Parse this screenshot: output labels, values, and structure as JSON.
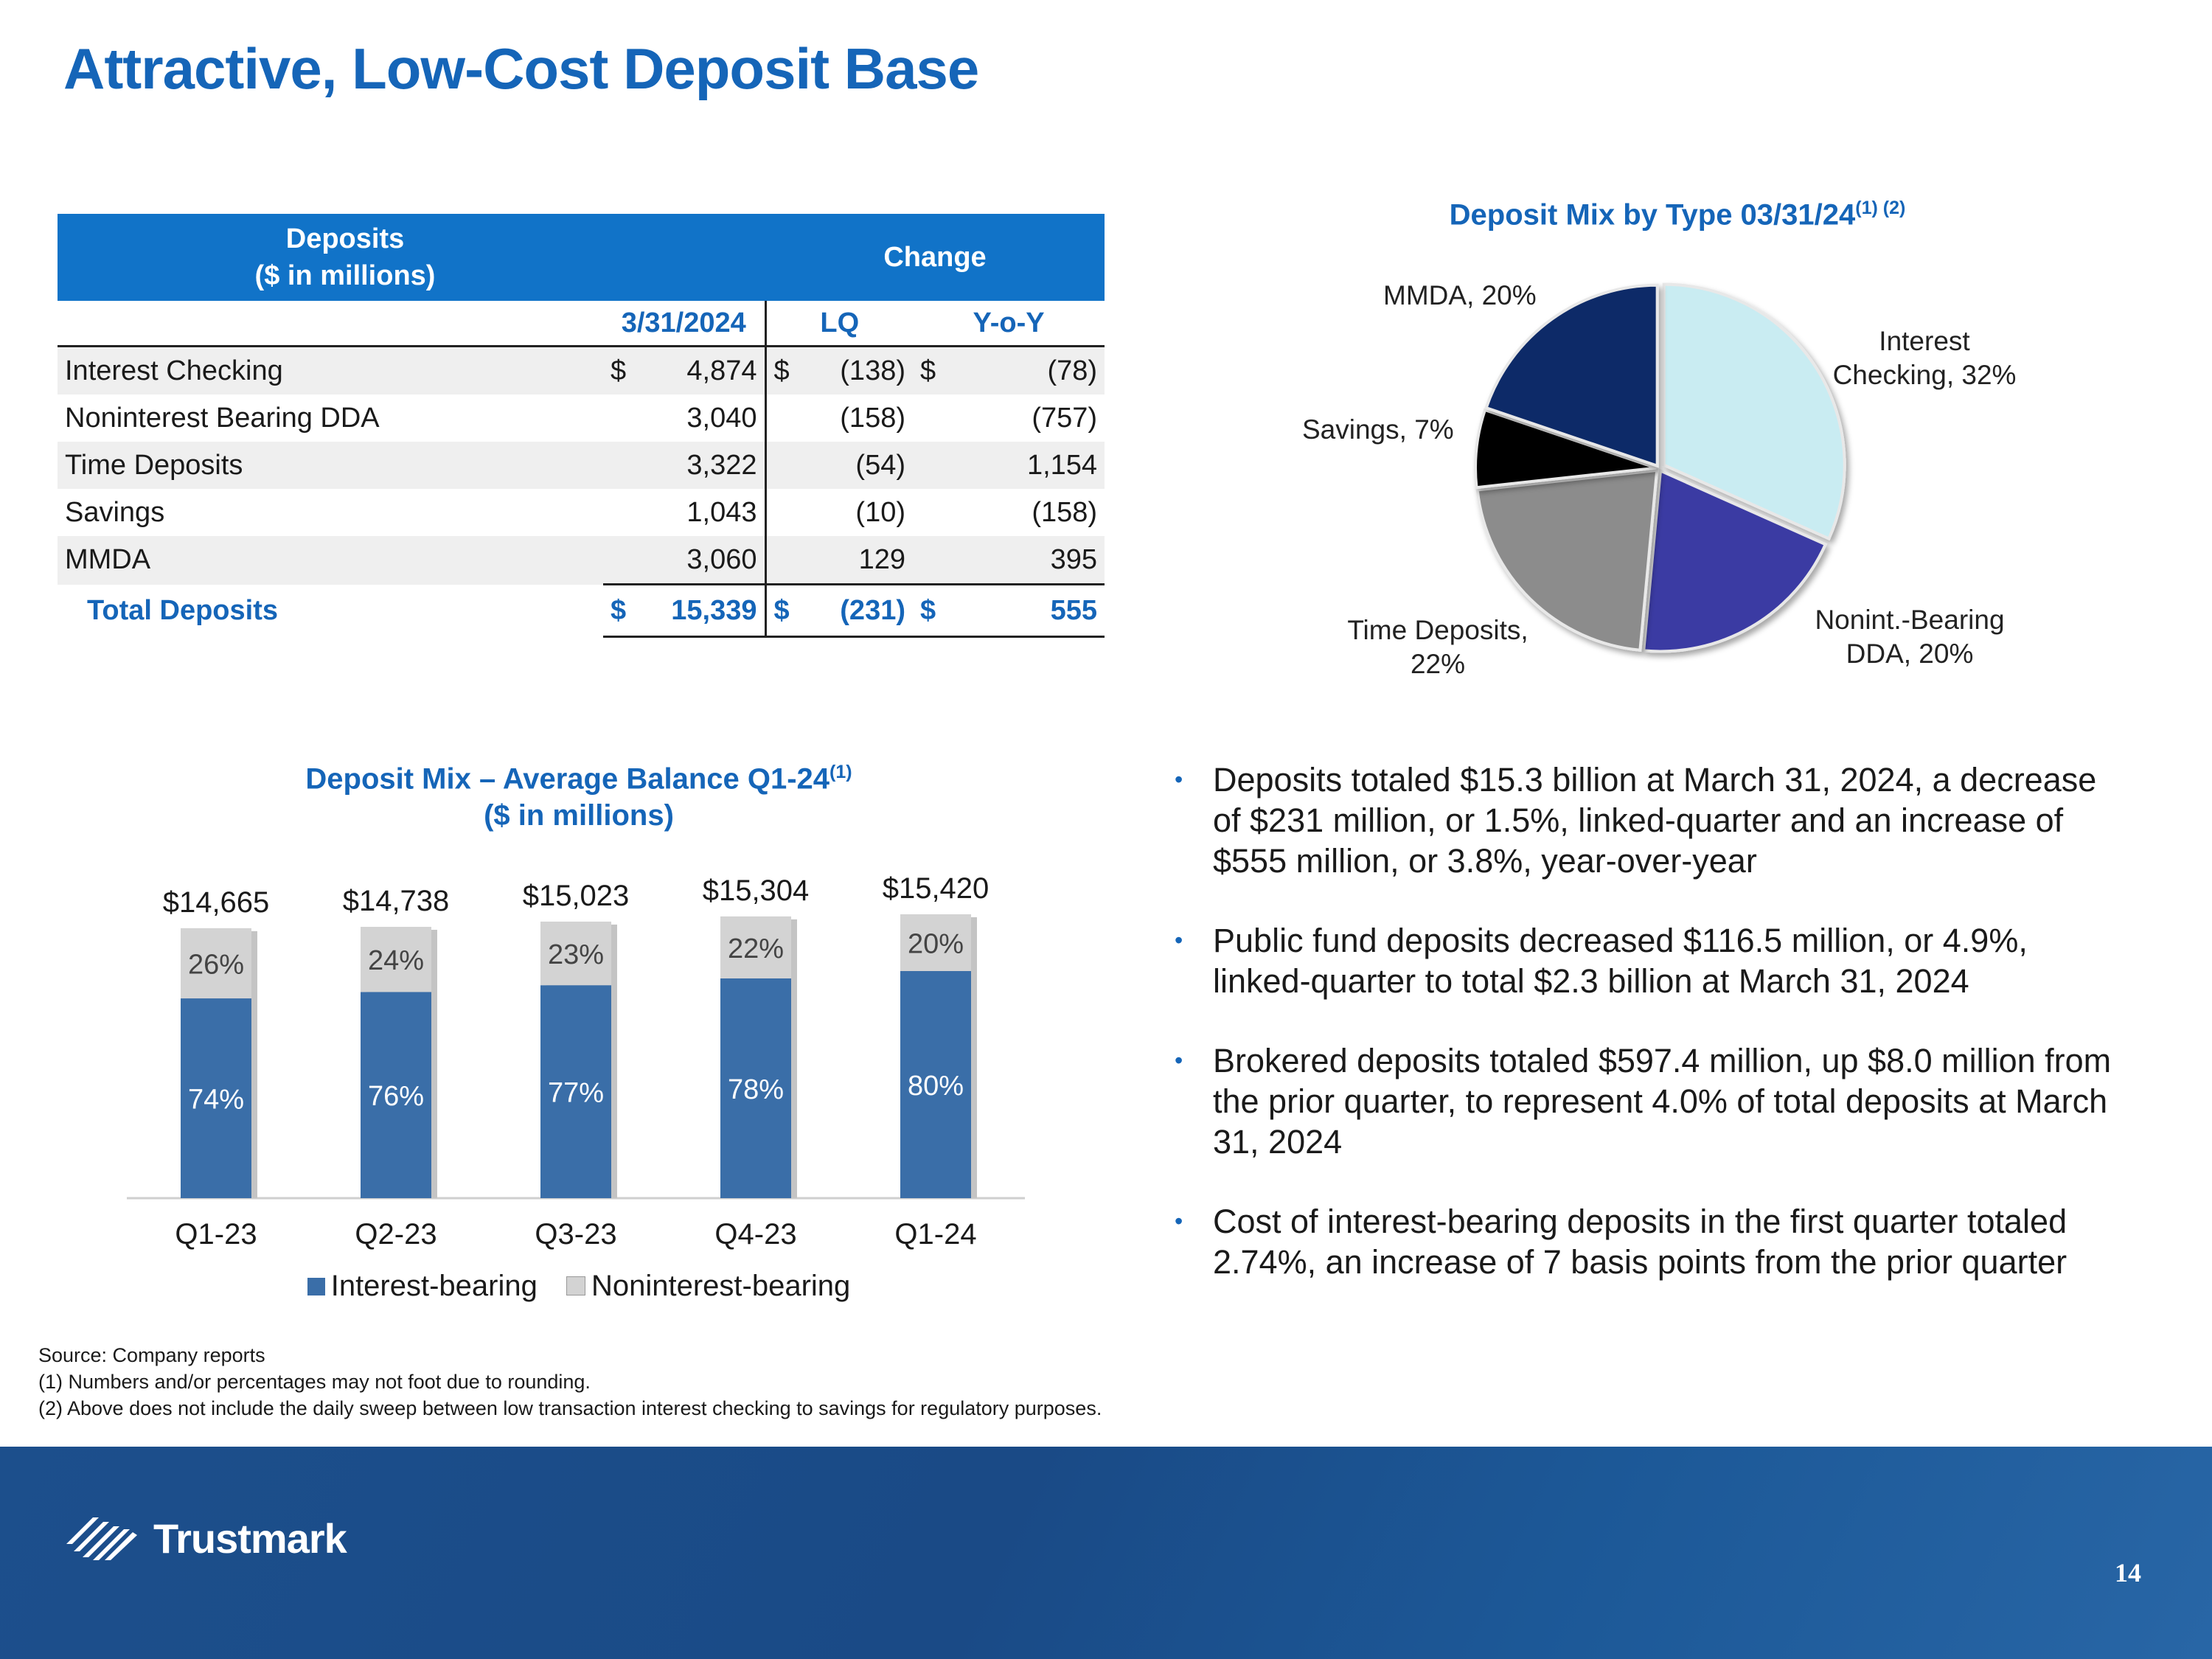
{
  "title": "Attractive, Low-Cost Deposit Base",
  "table": {
    "header_line1": "Deposits",
    "header_line2": "($ in millions)",
    "change_header": "Change",
    "col_date": "3/31/2024",
    "col_lq": "LQ",
    "col_yoy": "Y-o-Y",
    "rows": [
      {
        "label": "Interest Checking",
        "cur1": "$",
        "value": "4,874",
        "cur2": "$",
        "lq": "(138)",
        "cur3": "$",
        "yoy": "(78)"
      },
      {
        "label": "Noninterest Bearing DDA",
        "cur1": "",
        "value": "3,040",
        "cur2": "",
        "lq": "(158)",
        "cur3": "",
        "yoy": "(757)"
      },
      {
        "label": "Time Deposits",
        "cur1": "",
        "value": "3,322",
        "cur2": "",
        "lq": "(54)",
        "cur3": "",
        "yoy": "1,154"
      },
      {
        "label": "Savings",
        "cur1": "",
        "value": "1,043",
        "cur2": "",
        "lq": "(10)",
        "cur3": "",
        "yoy": "(158)"
      },
      {
        "label": "MMDA",
        "cur1": "",
        "value": "3,060",
        "cur2": "",
        "lq": "129",
        "cur3": "",
        "yoy": "395"
      }
    ],
    "total": {
      "label": "Total Deposits",
      "cur1": "$",
      "value": "15,339",
      "cur2": "$",
      "lq": "(231)",
      "cur3": "$",
      "yoy": "555"
    }
  },
  "pie": {
    "title": "Deposit Mix by Type 03/31/24",
    "title_sup": "(1) (2)"
  },
  "bar": {
    "title_line1": "Deposit Mix – Average Balance Q1-24",
    "title_sup": "(1)",
    "title_line2": "($ in millions)"
  },
  "chart_data": [
    {
      "type": "pie",
      "title": "Deposit Mix by Type 03/31/24",
      "slices": [
        {
          "label": "Interest Checking, 32%",
          "value": 32,
          "color": "#c9ecf2"
        },
        {
          "label": "Nonint.-Bearing DDA, 20%",
          "value": 20,
          "color": "#3a3aa3"
        },
        {
          "label": "Time Deposits, 22%",
          "value": 22,
          "color": "#8c8c8c"
        },
        {
          "label": "Savings, 7%",
          "value": 7,
          "color": "#050505"
        },
        {
          "label": "MMDA, 20%",
          "value": 20,
          "color": "#0f2a68"
        }
      ]
    },
    {
      "type": "bar",
      "title": "Deposit Mix – Average Balance Q1-24 ($ in millions)",
      "categories": [
        "Q1-23",
        "Q2-23",
        "Q3-23",
        "Q4-23",
        "Q1-24"
      ],
      "totals": [
        14665,
        14738,
        15023,
        15304,
        15420
      ],
      "total_labels": [
        "$14,665",
        "$14,738",
        "$15,023",
        "$15,304",
        "$15,420"
      ],
      "series": [
        {
          "name": "Interest-bearing",
          "values": [
            74,
            76,
            77,
            78,
            80
          ],
          "color": "#3a6ea8"
        },
        {
          "name": "Noninterest-bearing",
          "values": [
            26,
            24,
            23,
            22,
            20
          ],
          "color": "#d3d3d3"
        }
      ],
      "legend": "bottom"
    }
  ],
  "bullets": [
    "Deposits totaled $15.3 billion at March 31, 2024, a decrease of $231 million, or 1.5%, linked-quarter and an increase of $555 million, or 3.8%, year-over-year",
    "Public fund deposits decreased $116.5 million, or 4.9%, linked-quarter to total $2.3 billion at March 31, 2024",
    "Brokered deposits totaled $597.4 million, up $8.0 million from the prior quarter, to represent 4.0% of total deposits at March 31, 2024",
    "Cost of interest-bearing deposits in the first quarter totaled 2.74%, an increase of 7 basis points from the prior quarter"
  ],
  "footnotes": [
    "Source: Company reports",
    "(1) Numbers and/or percentages may not foot due to rounding.",
    "(2) Above does not include the daily sweep between low transaction interest checking to savings for regulatory purposes."
  ],
  "footer": {
    "logo_text": "Trustmark",
    "page_number": "14"
  }
}
